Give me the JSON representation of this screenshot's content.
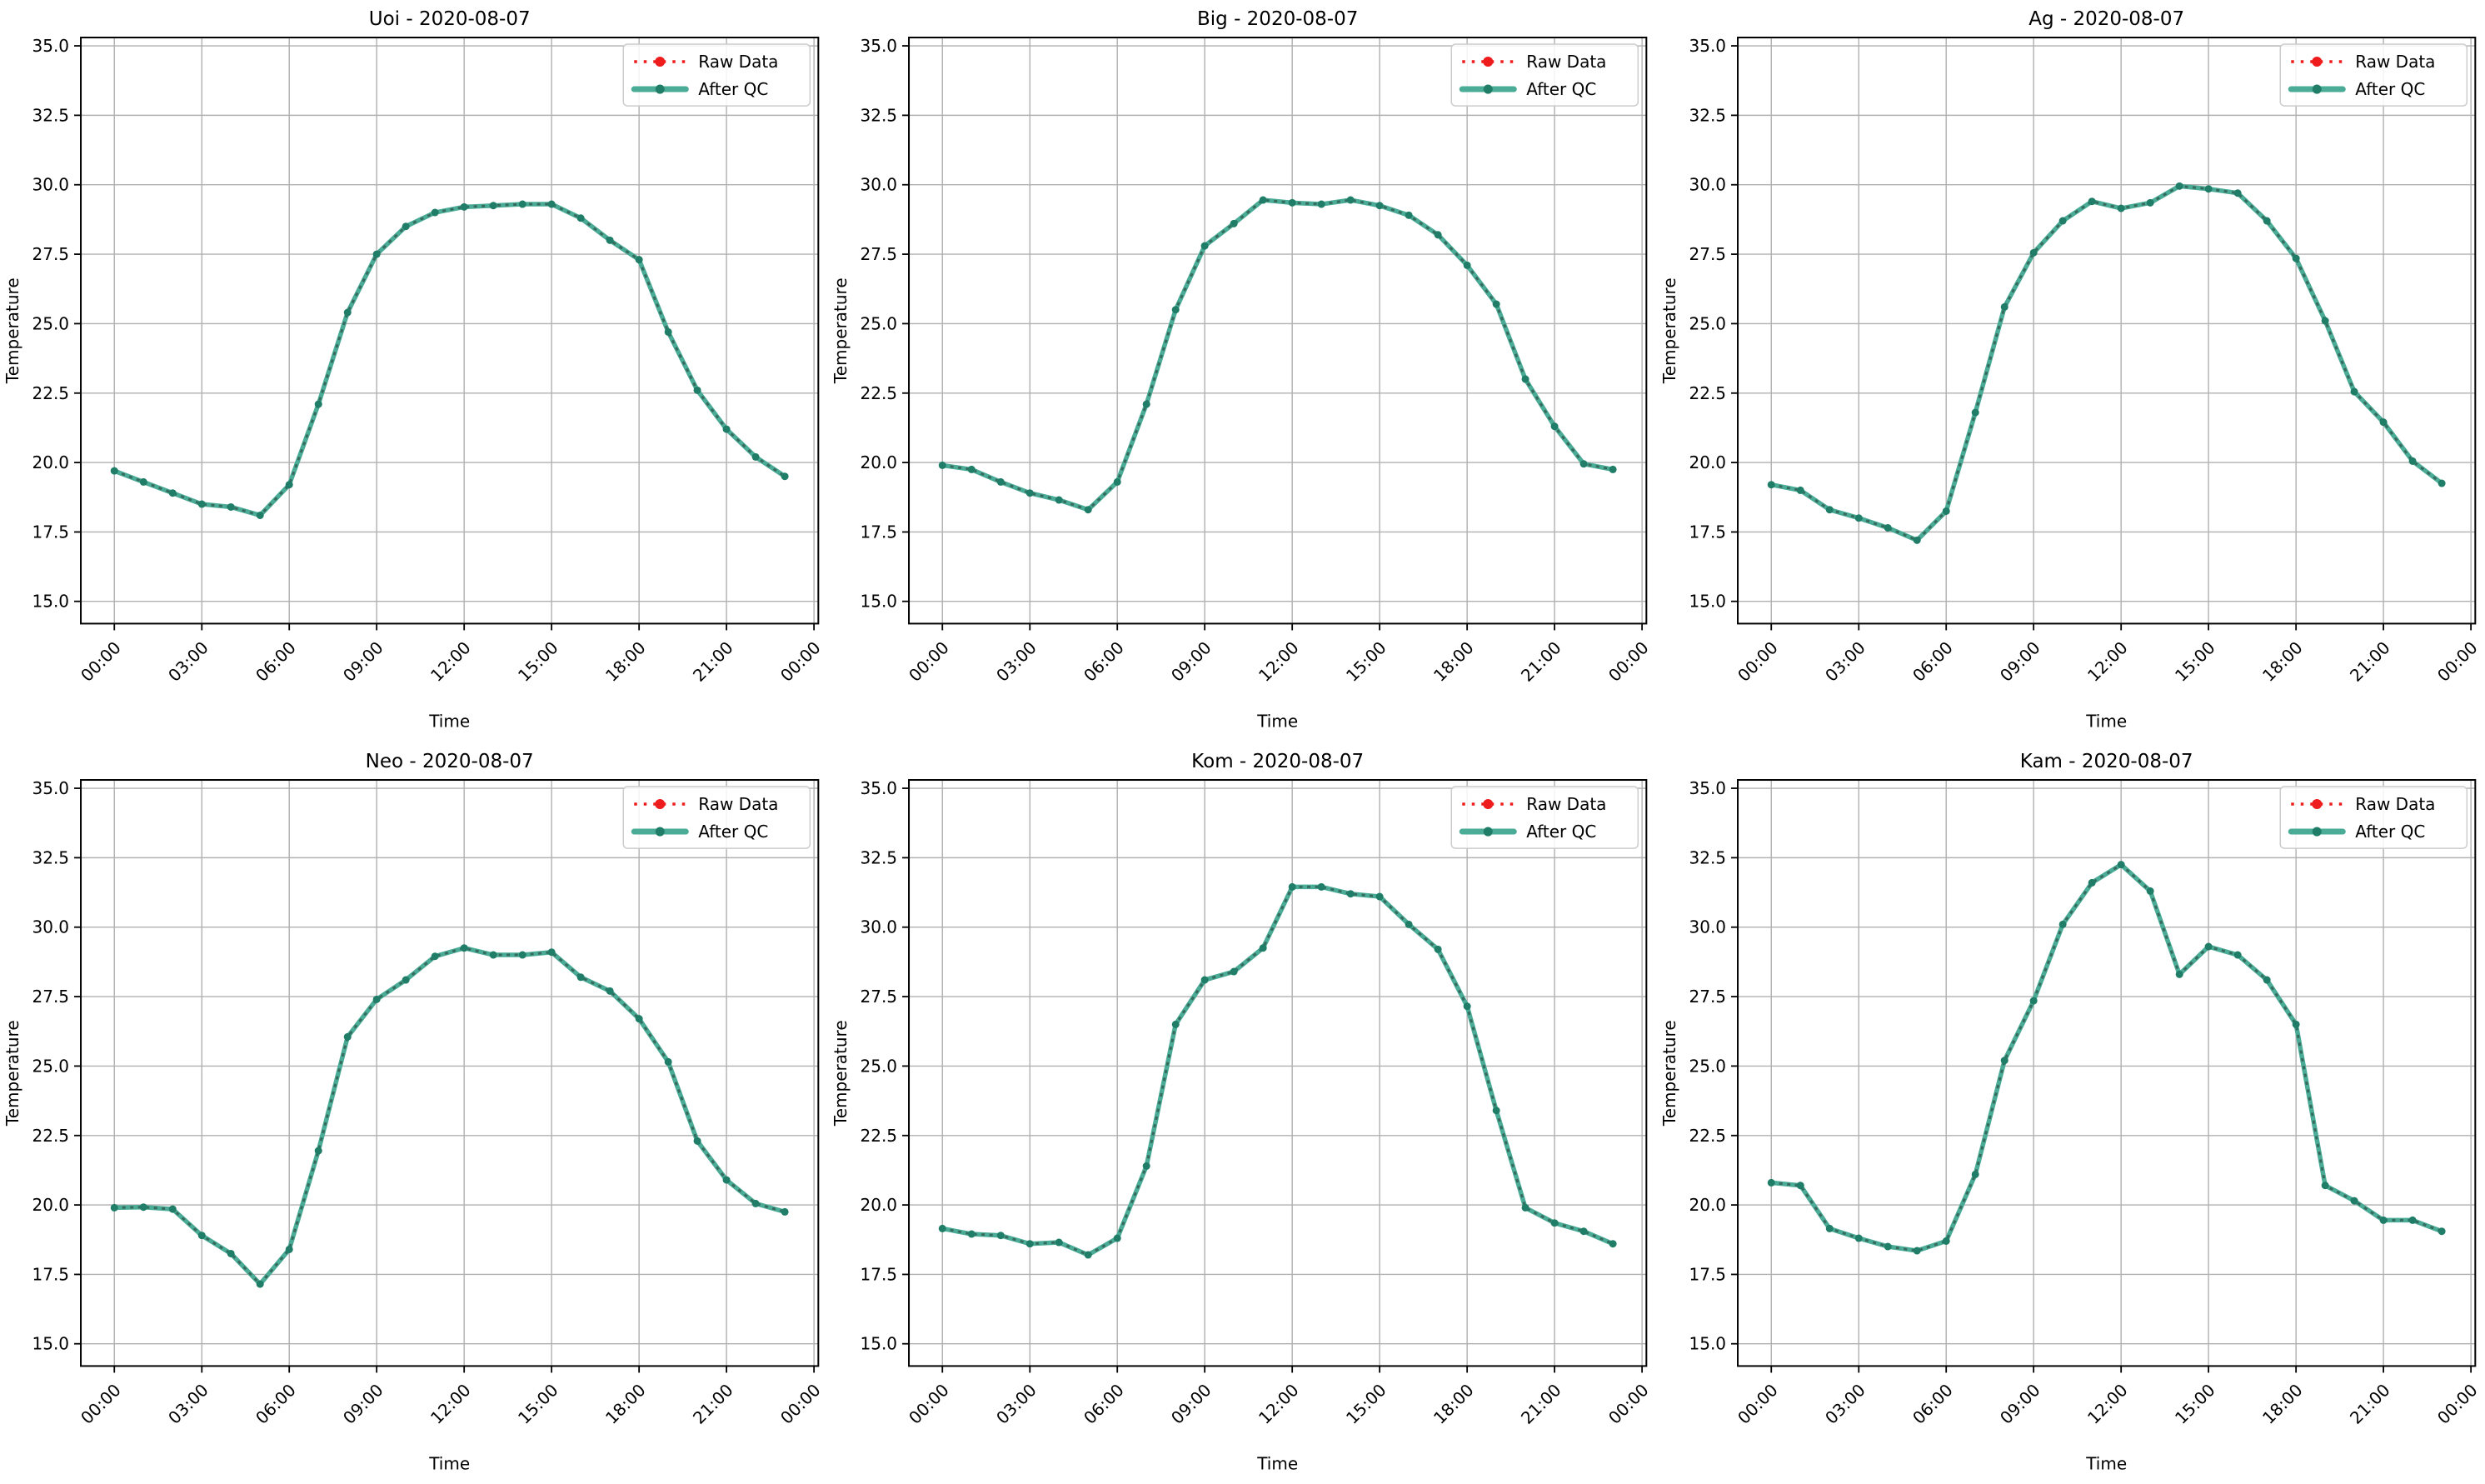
{
  "figure": {
    "date": "2020-08-07",
    "axes": {
      "xlabel": "Time",
      "ylabel": "Temperature",
      "xlim": [
        -1.15,
        24.15
      ],
      "ylim": [
        14.2,
        35.3
      ],
      "xtick_hours": [
        0,
        3,
        6,
        9,
        12,
        15,
        18,
        21,
        24
      ],
      "xtick_labels": [
        "00:00",
        "03:00",
        "06:00",
        "09:00",
        "12:00",
        "15:00",
        "18:00",
        "21:00",
        "00:00"
      ],
      "ytick_values": [
        15.0,
        17.5,
        20.0,
        22.5,
        25.0,
        27.5,
        30.0,
        32.5,
        35.0
      ],
      "grid": true
    },
    "legend": {
      "position": "upper right",
      "raw_label": "Raw Data",
      "qc_label": "After QC"
    },
    "colors": {
      "raw_red": "#ee1c1c",
      "qc_teal": "#4aab96",
      "qc_dash_dark": "#356b5d",
      "qc_marker": "#1f7d68",
      "grid_gray": "#b0b0b0",
      "spine_black": "#000000",
      "background": "#ffffff"
    }
  },
  "chart_data": [
    {
      "type": "line",
      "station": "Uoi",
      "title": "Uoi - 2020-08-07",
      "xlabel": "Time",
      "ylabel": "Temperature",
      "hours": [
        0,
        1,
        2,
        3,
        4,
        5,
        6,
        7,
        8,
        9,
        10,
        11,
        12,
        13,
        14,
        15,
        16,
        17,
        18,
        19,
        20,
        21,
        22,
        23
      ],
      "series": [
        {
          "name": "Raw Data",
          "values": [
            19.7,
            19.3,
            18.9,
            18.5,
            18.4,
            18.1,
            19.2,
            22.1,
            25.4,
            27.5,
            28.5,
            29.0,
            29.2,
            29.25,
            29.3,
            29.3,
            28.8,
            28.0,
            27.3,
            24.7,
            22.6,
            21.2,
            20.2,
            19.5
          ]
        },
        {
          "name": "After QC",
          "values": [
            19.7,
            19.3,
            18.9,
            18.5,
            18.4,
            18.1,
            19.2,
            22.1,
            25.4,
            27.5,
            28.5,
            29.0,
            29.2,
            29.25,
            29.3,
            29.3,
            28.8,
            28.0,
            27.3,
            24.7,
            22.6,
            21.2,
            20.2,
            19.5
          ]
        }
      ]
    },
    {
      "type": "line",
      "station": "Big",
      "title": "Big - 2020-08-07",
      "xlabel": "Time",
      "ylabel": "Temperature",
      "hours": [
        0,
        1,
        2,
        3,
        4,
        5,
        6,
        7,
        8,
        9,
        10,
        11,
        12,
        13,
        14,
        15,
        16,
        17,
        18,
        19,
        20,
        21,
        22,
        23
      ],
      "series": [
        {
          "name": "Raw Data",
          "values": [
            19.9,
            19.75,
            19.3,
            18.9,
            18.65,
            18.3,
            19.3,
            22.1,
            25.5,
            27.8,
            28.6,
            29.45,
            29.35,
            29.3,
            29.45,
            29.25,
            28.9,
            28.2,
            27.1,
            25.7,
            23.0,
            21.3,
            19.95,
            19.75
          ]
        },
        {
          "name": "After QC",
          "values": [
            19.9,
            19.75,
            19.3,
            18.9,
            18.65,
            18.3,
            19.3,
            22.1,
            25.5,
            27.8,
            28.6,
            29.45,
            29.35,
            29.3,
            29.45,
            29.25,
            28.9,
            28.2,
            27.1,
            25.7,
            23.0,
            21.3,
            19.95,
            19.75
          ]
        }
      ]
    },
    {
      "type": "line",
      "station": "Ag",
      "title": "Ag - 2020-08-07",
      "xlabel": "Time",
      "ylabel": "Temperature",
      "hours": [
        0,
        1,
        2,
        3,
        4,
        5,
        6,
        7,
        8,
        9,
        10,
        11,
        12,
        13,
        14,
        15,
        16,
        17,
        18,
        19,
        20,
        21,
        22,
        23
      ],
      "series": [
        {
          "name": "Raw Data",
          "values": [
            19.2,
            19.0,
            18.3,
            18.0,
            17.65,
            17.2,
            18.25,
            21.8,
            25.6,
            27.55,
            28.7,
            29.4,
            29.15,
            29.35,
            29.95,
            29.85,
            29.7,
            28.7,
            27.35,
            25.1,
            22.55,
            21.45,
            20.05,
            19.25
          ]
        },
        {
          "name": "After QC",
          "values": [
            19.2,
            19.0,
            18.3,
            18.0,
            17.65,
            17.2,
            18.25,
            21.8,
            25.6,
            27.55,
            28.7,
            29.4,
            29.15,
            29.35,
            29.95,
            29.85,
            29.7,
            28.7,
            27.35,
            25.1,
            22.55,
            21.45,
            20.05,
            19.25
          ]
        }
      ]
    },
    {
      "type": "line",
      "station": "Neo",
      "title": "Neo - 2020-08-07",
      "xlabel": "Time",
      "ylabel": "Temperature",
      "hours": [
        0,
        1,
        2,
        3,
        4,
        5,
        6,
        7,
        8,
        9,
        10,
        11,
        12,
        13,
        14,
        15,
        16,
        17,
        18,
        19,
        20,
        21,
        22,
        23
      ],
      "series": [
        {
          "name": "Raw Data",
          "values": [
            19.9,
            19.92,
            19.85,
            18.9,
            18.25,
            17.15,
            18.4,
            21.95,
            26.05,
            27.4,
            28.1,
            28.95,
            29.25,
            29.0,
            29.0,
            29.1,
            28.2,
            27.7,
            26.7,
            25.15,
            22.3,
            20.9,
            20.05,
            19.75
          ]
        },
        {
          "name": "After QC",
          "values": [
            19.9,
            19.92,
            19.85,
            18.9,
            18.25,
            17.15,
            18.4,
            21.95,
            26.05,
            27.4,
            28.1,
            28.95,
            29.25,
            29.0,
            29.0,
            29.1,
            28.2,
            27.7,
            26.7,
            25.15,
            22.3,
            20.9,
            20.05,
            19.75
          ]
        }
      ]
    },
    {
      "type": "line",
      "station": "Kom",
      "title": "Kom - 2020-08-07",
      "xlabel": "Time",
      "ylabel": "Temperature",
      "hours": [
        0,
        1,
        2,
        3,
        4,
        5,
        6,
        7,
        8,
        9,
        10,
        11,
        12,
        13,
        14,
        15,
        16,
        17,
        18,
        19,
        20,
        21,
        22,
        23
      ],
      "series": [
        {
          "name": "Raw Data",
          "values": [
            19.15,
            18.95,
            18.9,
            18.6,
            18.65,
            18.2,
            18.8,
            21.4,
            26.5,
            28.1,
            28.4,
            29.25,
            31.45,
            31.45,
            31.2,
            31.1,
            30.1,
            29.2,
            27.15,
            23.4,
            19.9,
            19.35,
            19.05,
            18.6
          ]
        },
        {
          "name": "After QC",
          "values": [
            19.15,
            18.95,
            18.9,
            18.6,
            18.65,
            18.2,
            18.8,
            21.4,
            26.5,
            28.1,
            28.4,
            29.25,
            31.45,
            31.45,
            31.2,
            31.1,
            30.1,
            29.2,
            27.15,
            23.4,
            19.9,
            19.35,
            19.05,
            18.6
          ]
        }
      ]
    },
    {
      "type": "line",
      "station": "Kam",
      "title": "Kam - 2020-08-07",
      "xlabel": "Time",
      "ylabel": "Temperature",
      "hours": [
        0,
        1,
        2,
        3,
        4,
        5,
        6,
        7,
        8,
        9,
        10,
        11,
        12,
        13,
        14,
        15,
        16,
        17,
        18,
        19,
        20,
        21,
        22,
        23
      ],
      "series": [
        {
          "name": "Raw Data",
          "values": [
            20.8,
            20.7,
            19.15,
            18.8,
            18.5,
            18.35,
            18.7,
            21.1,
            25.2,
            27.35,
            30.1,
            31.6,
            32.25,
            31.3,
            28.3,
            29.3,
            29.0,
            28.1,
            26.5,
            20.7,
            20.15,
            19.45,
            19.45,
            19.05
          ]
        },
        {
          "name": "After QC",
          "values": [
            20.8,
            20.7,
            19.15,
            18.8,
            18.5,
            18.35,
            18.7,
            21.1,
            25.2,
            27.35,
            30.1,
            31.6,
            32.25,
            31.3,
            28.3,
            29.3,
            29.0,
            28.1,
            26.5,
            20.7,
            20.15,
            19.45,
            19.45,
            19.05
          ]
        }
      ]
    }
  ]
}
